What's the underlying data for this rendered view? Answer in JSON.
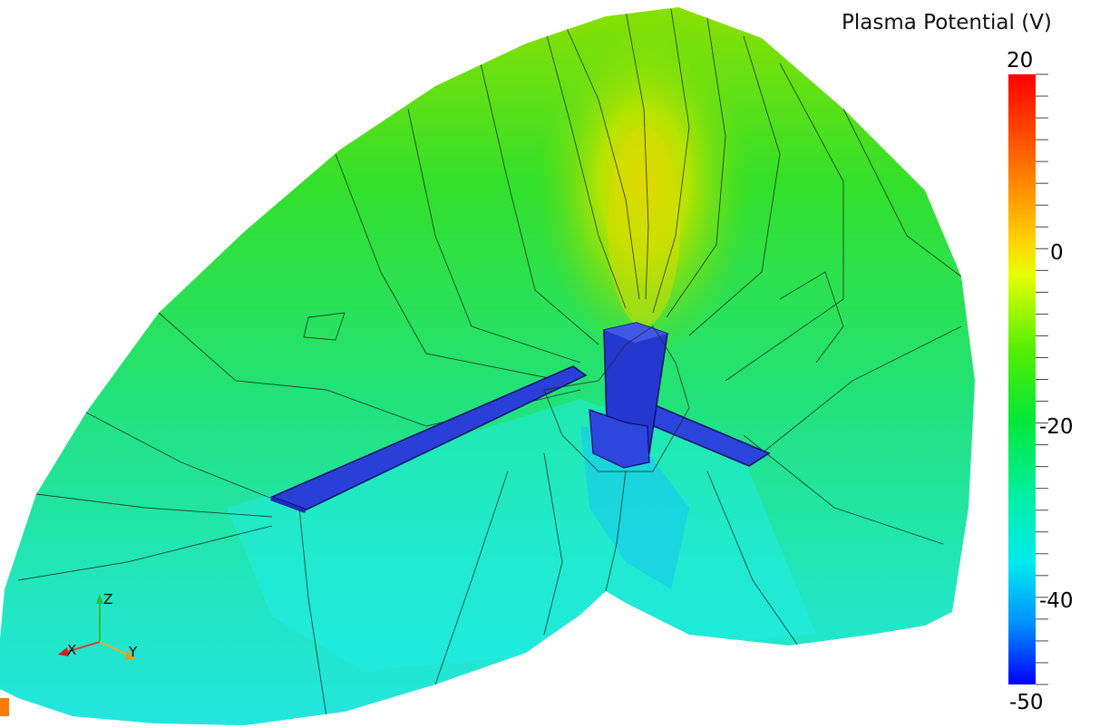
{
  "colorbar": {
    "title": "Plasma Potential (V)",
    "max_label": "20",
    "mid_label": "0",
    "label_neg20": "-20",
    "label_neg40": "-40",
    "min_label": "-50",
    "range": [
      -50,
      20
    ],
    "levels": 28
  },
  "axes_triad": {
    "x": "X",
    "y": "Y",
    "z": "Z"
  },
  "colors": {
    "background": "#ffffff",
    "body": "#2233cc",
    "contour_line": "#111111"
  }
}
